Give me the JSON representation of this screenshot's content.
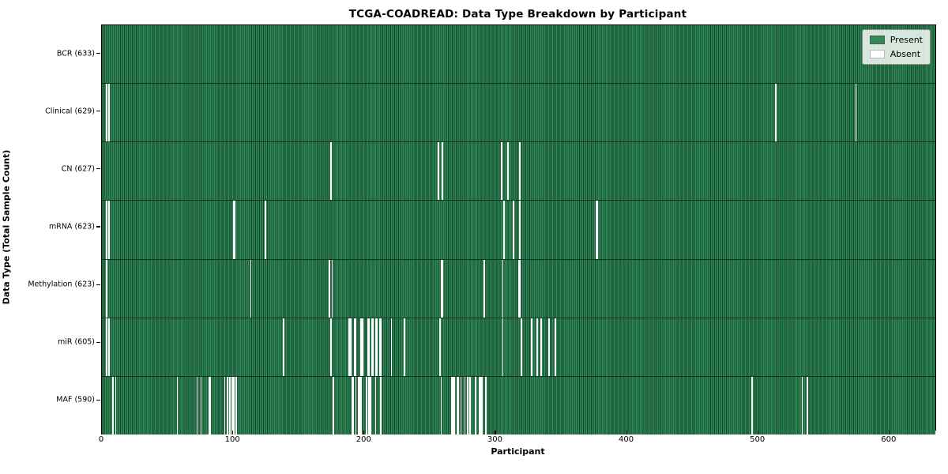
{
  "chart_data": {
    "type": "heatmap",
    "title": "TCGA-COADREAD: Data Type Breakdown by Participant",
    "xlabel": "Participant",
    "ylabel": "Data Type (Total Sample Count)",
    "x_ticks": [
      0,
      100,
      200,
      300,
      400,
      500,
      600
    ],
    "x_max": 635,
    "colors": {
      "present": "#2e8b57",
      "present_edge": "#16422b",
      "absent": "#ffffff",
      "legend_bg": "rgba(255,255,255,0.82)"
    },
    "legend": [
      {
        "label": "Present",
        "color": "#2e8b57"
      },
      {
        "label": "Absent",
        "color": "#ffffff"
      }
    ],
    "rows": [
      {
        "label": "BCR (633)",
        "data_type": "BCR",
        "count": 633,
        "absent": []
      },
      {
        "label": "Clinical (629)",
        "data_type": "Clinical",
        "count": 629,
        "absent": [
          3,
          5,
          513,
          574
        ]
      },
      {
        "label": "CN (627)",
        "data_type": "CN",
        "count": 627,
        "absent": [
          174,
          256,
          259,
          304,
          309,
          318
        ]
      },
      {
        "label": "mRNA (623)",
        "data_type": "mRNA",
        "count": 623,
        "absent": [
          3,
          5,
          100,
          101,
          124,
          306,
          313,
          318,
          376,
          377
        ]
      },
      {
        "label": "Methylation (623)",
        "data_type": "Methylation",
        "count": 623,
        "absent": [
          3,
          113,
          173,
          175,
          258,
          259,
          291,
          305,
          317,
          318
        ]
      },
      {
        "label": "miR (605)",
        "data_type": "miR",
        "count": 605,
        "absent": [
          3,
          5,
          138,
          174,
          188,
          189,
          192,
          193,
          197,
          198,
          202,
          203,
          205,
          206,
          208,
          209,
          211,
          212,
          220,
          230,
          257,
          305,
          319,
          327,
          331,
          334,
          340,
          345
        ]
      },
      {
        "label": "MAF (590)",
        "data_type": "MAF",
        "count": 590,
        "absent": [
          8,
          10,
          57,
          72,
          75,
          81,
          82,
          93,
          95,
          97,
          99,
          100,
          102,
          176,
          190,
          191,
          193,
          195,
          196,
          197,
          201,
          203,
          204,
          208,
          212,
          258,
          266,
          267,
          268,
          270,
          271,
          273,
          276,
          278,
          280,
          284,
          287,
          288,
          289,
          292,
          495,
          533,
          537
        ]
      }
    ]
  }
}
